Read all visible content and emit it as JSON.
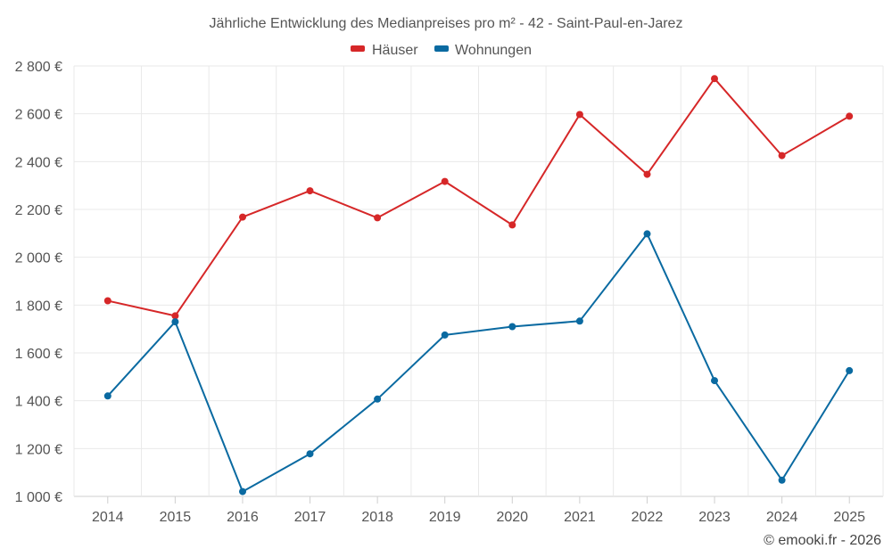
{
  "chart_data": {
    "type": "line",
    "title": "Jährliche Entwicklung des Medianpreises pro m² - 42 - Saint-Paul-en-Jarez",
    "xlabel": "",
    "ylabel": "",
    "categories": [
      "2014",
      "2015",
      "2016",
      "2017",
      "2018",
      "2019",
      "2020",
      "2021",
      "2022",
      "2023",
      "2024",
      "2025"
    ],
    "ylim": [
      1000,
      2800
    ],
    "yticks": [
      1000,
      1200,
      1400,
      1600,
      1800,
      2000,
      2200,
      2400,
      2600,
      2800
    ],
    "ytick_labels": [
      "1 000 €",
      "1 200 €",
      "1 400 €",
      "1 600 €",
      "1 800 €",
      "2 000 €",
      "2 200 €",
      "2 400 €",
      "2 600 €",
      "2 800 €"
    ],
    "grid": true,
    "legend_position": "top-center",
    "series": [
      {
        "name": "Häuser",
        "color": "#d62728",
        "values": [
          1818,
          1755,
          2168,
          2278,
          2165,
          2317,
          2135,
          2597,
          2347,
          2747,
          2425,
          2590
        ]
      },
      {
        "name": "Wohnungen",
        "color": "#0a6aa1",
        "values": [
          1420,
          1730,
          1020,
          1178,
          1407,
          1675,
          1710,
          1733,
          2098,
          1484,
          1068,
          1526
        ]
      }
    ],
    "credit": "© emooki.fr - 2026"
  }
}
